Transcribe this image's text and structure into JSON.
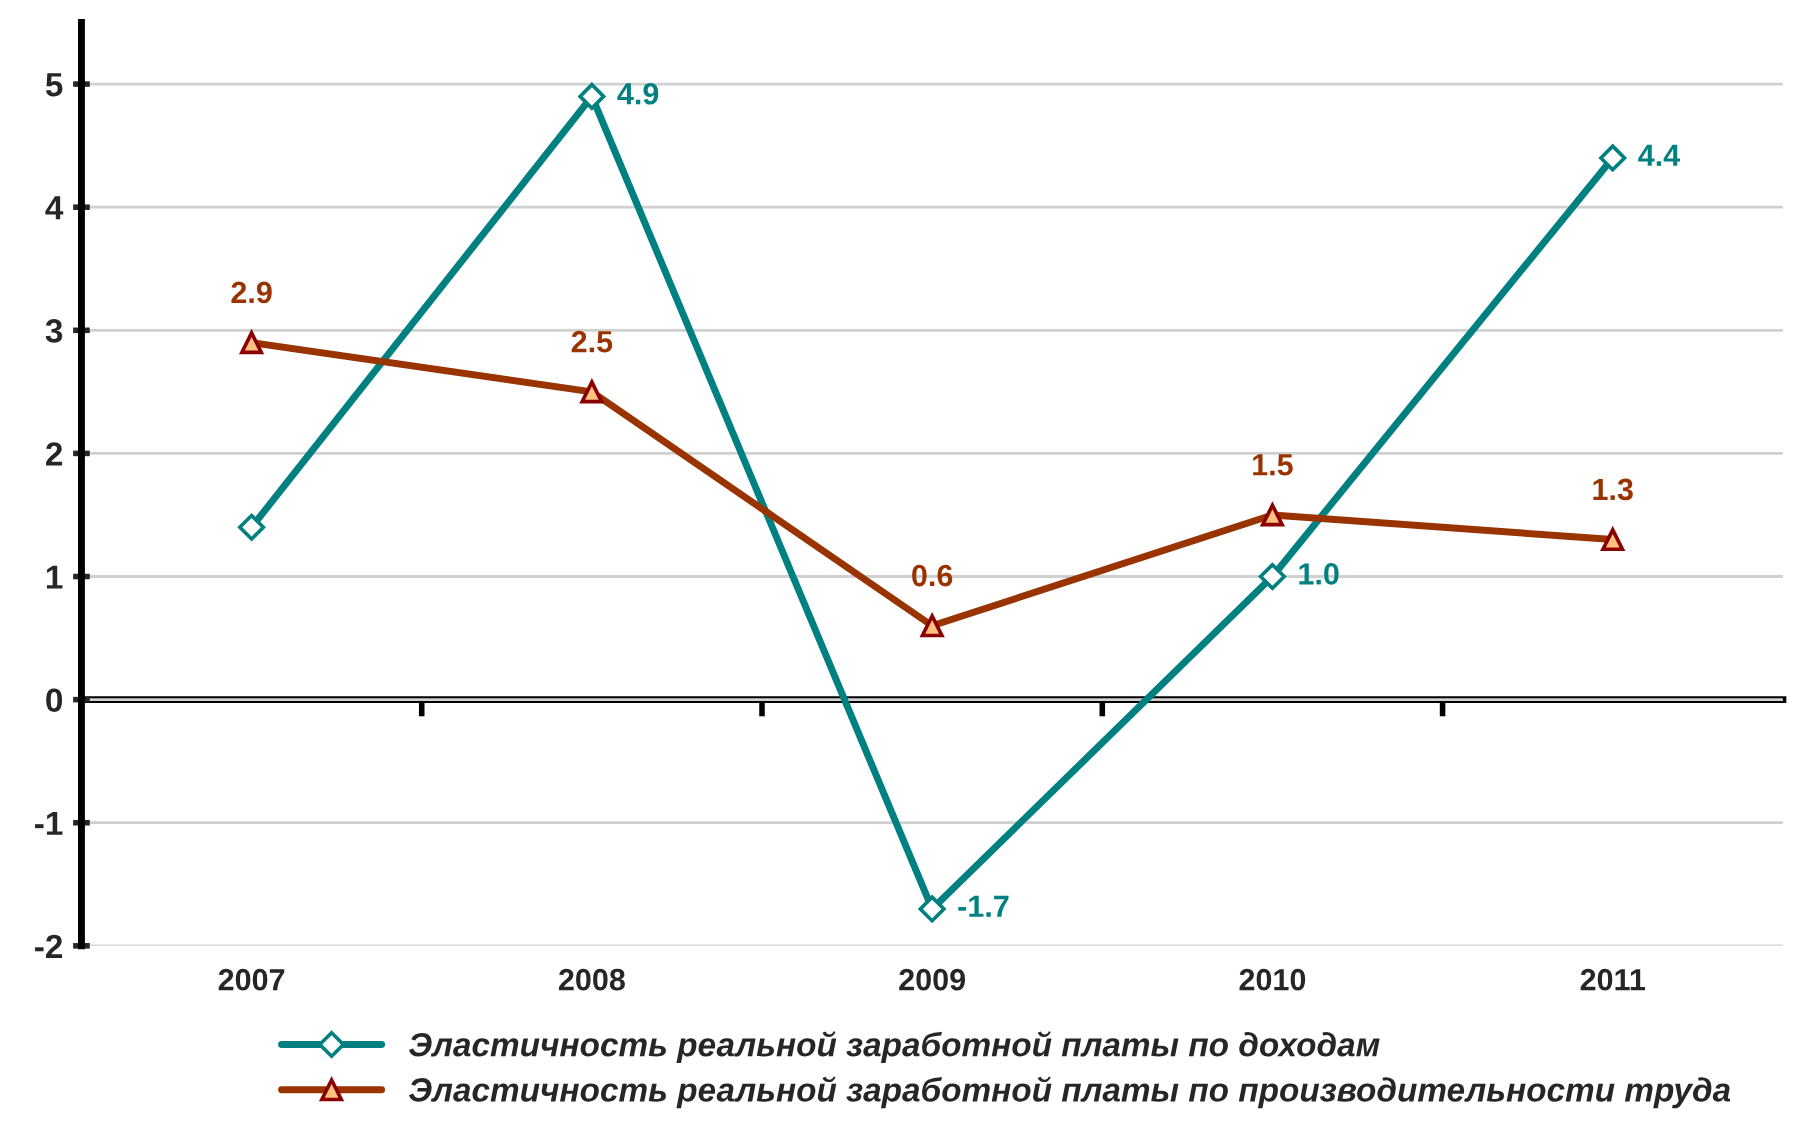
{
  "chart_data": {
    "type": "line",
    "categories": [
      "2007",
      "2008",
      "2009",
      "2010",
      "2011"
    ],
    "series": [
      {
        "name": "Эластичность реальной заработной платы по доходам",
        "color": "#008080",
        "marker": "diamond",
        "values": [
          1.4,
          4.9,
          -1.7,
          1.0,
          4.4
        ],
        "value_labels": [
          null,
          "4.9",
          "-1.7",
          "1.0",
          "4.4"
        ]
      },
      {
        "name": "Эластичность реальной заработной платы по производительности труда",
        "color": "#993300",
        "marker": "triangle",
        "values": [
          2.9,
          2.5,
          0.6,
          1.5,
          1.3
        ],
        "value_labels": [
          "2.9",
          "2.5",
          "0.6",
          "1.5",
          "1.3"
        ]
      }
    ],
    "ylim": [
      -2,
      5.5
    ],
    "yticks": [
      -2,
      -1,
      0,
      1,
      2,
      3,
      4,
      5
    ],
    "grid": "y",
    "legend": "bottom",
    "line_style": "solid"
  }
}
